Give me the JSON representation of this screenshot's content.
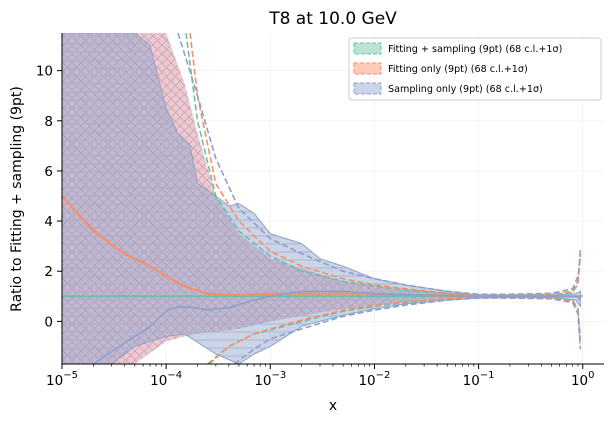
{
  "colors": {
    "fit_sampling": "#66c2a5",
    "fit_only": "#fc8d62",
    "sampling_only": "#8da0cb",
    "fit_only_band": "#e8a3a8",
    "sampling_only_band": "#8da0cb",
    "axis": "#000000",
    "grid": "#f0f0f0",
    "legend_border": "#cccccc"
  },
  "chart_data": {
    "type": "line",
    "title": "T8 at 10.0 GeV",
    "xlabel": "x",
    "ylabel": "Ratio to Fitting + sampling (9pt)",
    "xscale": "log",
    "xlim": [
      1e-05,
      1.6
    ],
    "ylim": [
      -1.7,
      11.5
    ],
    "grid": "on",
    "legend_position": "top-right",
    "x_ticks": [
      {
        "base": "10",
        "exp": "−5",
        "value": 1e-05
      },
      {
        "base": "10",
        "exp": "−4",
        "value": 0.0001
      },
      {
        "base": "10",
        "exp": "−3",
        "value": 0.001
      },
      {
        "base": "10",
        "exp": "−2",
        "value": 0.01
      },
      {
        "base": "10",
        "exp": "−1",
        "value": 0.1
      },
      {
        "base": "10",
        "exp": "0",
        "value": 1
      }
    ],
    "y_ticks": [
      {
        "label": "0",
        "value": 0
      },
      {
        "label": "2",
        "value": 2
      },
      {
        "label": "4",
        "value": 4
      },
      {
        "label": "6",
        "value": 6
      },
      {
        "label": "8",
        "value": 8
      },
      {
        "label": "10",
        "value": 10
      }
    ],
    "series": [
      {
        "name": "Fitting + sampling (9pt) (68 c.l.+1σ)",
        "key": "fit_sampling",
        "central": [
          [
            1e-05,
            1.0
          ],
          [
            1.0,
            1.0
          ]
        ],
        "upper_1sigma": [
          [
            0.000155,
            11.5
          ],
          [
            0.0002,
            8.0
          ],
          [
            0.0003,
            5.0
          ],
          [
            0.0005,
            3.6
          ],
          [
            0.001,
            2.6
          ],
          [
            0.002,
            2.0
          ],
          [
            0.005,
            1.6
          ],
          [
            0.01,
            1.4
          ],
          [
            0.02,
            1.25
          ],
          [
            0.05,
            1.1
          ],
          [
            0.1,
            1.05
          ],
          [
            0.2,
            1.05
          ],
          [
            0.5,
            1.07
          ],
          [
            0.8,
            1.15
          ],
          [
            0.9,
            1.5
          ],
          [
            0.95,
            2.9
          ]
        ],
        "lower_1sigma": [
          [
            0.00025,
            -1.7
          ],
          [
            0.0004,
            -1.0
          ],
          [
            0.0007,
            -0.5
          ],
          [
            0.001,
            -0.35
          ],
          [
            0.002,
            0.0
          ],
          [
            0.005,
            0.4
          ],
          [
            0.01,
            0.6
          ],
          [
            0.02,
            0.75
          ],
          [
            0.05,
            0.9
          ],
          [
            0.1,
            0.95
          ],
          [
            0.2,
            0.95
          ],
          [
            0.5,
            0.93
          ],
          [
            0.8,
            0.85
          ],
          [
            0.9,
            0.5
          ],
          [
            0.95,
            -0.9
          ]
        ]
      },
      {
        "name": "Fitting only (9pt) (68 c.l.+1σ)",
        "key": "fit_only",
        "central": [
          [
            1e-05,
            5.0
          ],
          [
            2e-05,
            3.6
          ],
          [
            4e-05,
            2.7
          ],
          [
            7e-05,
            2.2
          ],
          [
            0.0001,
            1.8
          ],
          [
            0.00015,
            1.4
          ],
          [
            0.00025,
            1.1
          ],
          [
            0.0005,
            1.05
          ],
          [
            0.001,
            1.1
          ],
          [
            0.003,
            1.1
          ],
          [
            0.01,
            1.1
          ],
          [
            0.03,
            1.05
          ],
          [
            0.1,
            1.0
          ],
          [
            0.5,
            1.0
          ],
          [
            0.9,
            1.0
          ],
          [
            0.95,
            1.0
          ]
        ],
        "upper_1sigma": [
          [
            0.00017,
            11.5
          ],
          [
            0.0002,
            9.0
          ],
          [
            0.0003,
            5.5
          ],
          [
            0.0005,
            4.0
          ],
          [
            0.001,
            2.8
          ],
          [
            0.002,
            2.2
          ],
          [
            0.005,
            1.7
          ],
          [
            0.01,
            1.45
          ],
          [
            0.02,
            1.3
          ],
          [
            0.05,
            1.12
          ],
          [
            0.1,
            1.06
          ],
          [
            0.2,
            1.05
          ],
          [
            0.5,
            1.08
          ],
          [
            0.8,
            1.2
          ],
          [
            0.9,
            1.6
          ],
          [
            0.95,
            2.7
          ]
        ],
        "lower_1sigma": [
          [
            0.00026,
            -1.7
          ],
          [
            0.0004,
            -1.0
          ],
          [
            0.0007,
            -0.5
          ],
          [
            0.001,
            -0.3
          ],
          [
            0.002,
            0.05
          ],
          [
            0.005,
            0.45
          ],
          [
            0.01,
            0.65
          ],
          [
            0.02,
            0.78
          ],
          [
            0.05,
            0.9
          ],
          [
            0.1,
            0.95
          ],
          [
            0.2,
            0.95
          ],
          [
            0.5,
            0.92
          ],
          [
            0.8,
            0.82
          ],
          [
            0.9,
            0.45
          ],
          [
            0.95,
            -0.7
          ]
        ],
        "band_upper": [
          [
            1e-05,
            11.5
          ],
          [
            0.0001,
            11.5
          ],
          [
            0.00015,
            9.5
          ],
          [
            0.0002,
            7.5
          ],
          [
            0.0003,
            5.0
          ],
          [
            0.0005,
            3.5
          ],
          [
            0.001,
            2.5
          ],
          [
            0.005,
            1.6
          ],
          [
            0.01,
            1.4
          ],
          [
            0.05,
            1.15
          ],
          [
            0.1,
            1.05
          ]
        ],
        "band_lower": [
          [
            1e-05,
            -1.7
          ],
          [
            5e-05,
            -1.7
          ],
          [
            0.0001,
            -0.8
          ],
          [
            0.00015,
            -0.6
          ],
          [
            0.0002,
            -0.5
          ],
          [
            0.0005,
            -0.3
          ],
          [
            0.001,
            0.0
          ],
          [
            0.005,
            0.5
          ],
          [
            0.01,
            0.65
          ],
          [
            0.05,
            0.9
          ],
          [
            0.1,
            0.95
          ]
        ]
      },
      {
        "name": "Sampling only (9pt) (68 c.l.+1σ)",
        "key": "sampling_only",
        "central": [
          [
            2e-05,
            -1.7
          ],
          [
            3e-05,
            -1.2
          ],
          [
            5e-05,
            -0.6
          ],
          [
            7e-05,
            -0.2
          ],
          [
            0.0001,
            0.4
          ],
          [
            0.00013,
            0.6
          ],
          [
            0.00018,
            0.55
          ],
          [
            0.00025,
            0.45
          ],
          [
            0.0004,
            0.55
          ],
          [
            0.0007,
            0.85
          ],
          [
            0.001,
            1.0
          ],
          [
            0.002,
            1.2
          ],
          [
            0.005,
            1.2
          ],
          [
            0.01,
            1.1
          ],
          [
            0.03,
            1.05
          ],
          [
            0.1,
            1.0
          ],
          [
            0.5,
            1.0
          ],
          [
            0.9,
            0.98
          ],
          [
            0.95,
            0.85
          ]
        ],
        "upper_1sigma": [
          [
            0.00013,
            11.5
          ],
          [
            0.0002,
            9.0
          ],
          [
            0.0003,
            6.5
          ],
          [
            0.0005,
            4.5
          ],
          [
            0.001,
            3.3
          ],
          [
            0.002,
            2.7
          ],
          [
            0.005,
            2.0
          ],
          [
            0.01,
            1.7
          ],
          [
            0.02,
            1.45
          ],
          [
            0.05,
            1.2
          ],
          [
            0.1,
            1.08
          ],
          [
            0.2,
            1.08
          ],
          [
            0.5,
            1.12
          ],
          [
            0.8,
            1.3
          ],
          [
            0.9,
            1.8
          ],
          [
            0.95,
            2.6
          ]
        ],
        "lower_1sigma": [
          [
            0.00045,
            -1.7
          ],
          [
            0.0007,
            -1.1
          ],
          [
            0.001,
            -0.7
          ],
          [
            0.002,
            -0.3
          ],
          [
            0.005,
            0.2
          ],
          [
            0.01,
            0.45
          ],
          [
            0.02,
            0.65
          ],
          [
            0.05,
            0.85
          ],
          [
            0.1,
            0.93
          ],
          [
            0.2,
            0.93
          ],
          [
            0.5,
            0.9
          ],
          [
            0.8,
            0.75
          ],
          [
            0.9,
            0.3
          ],
          [
            0.95,
            -1.1
          ]
        ],
        "band_upper": [
          [
            1e-05,
            11.5
          ],
          [
            5e-05,
            11.5
          ],
          [
            7e-05,
            11.0
          ],
          [
            0.0001,
            8.5
          ],
          [
            0.00013,
            7.5
          ],
          [
            0.00017,
            7.0
          ],
          [
            0.0002,
            5.5
          ],
          [
            0.0003,
            5.0
          ],
          [
            0.0004,
            4.6
          ],
          [
            0.0005,
            4.7
          ],
          [
            0.0007,
            4.3
          ],
          [
            0.001,
            3.5
          ],
          [
            0.002,
            3.1
          ],
          [
            0.003,
            2.5
          ],
          [
            0.005,
            2.2
          ],
          [
            0.01,
            1.7
          ],
          [
            0.02,
            1.45
          ],
          [
            0.05,
            1.2
          ],
          [
            0.1,
            1.05
          ],
          [
            0.3,
            1.03
          ],
          [
            0.6,
            1.05
          ],
          [
            0.85,
            1.1
          ],
          [
            0.95,
            1.2
          ]
        ],
        "band_lower": [
          [
            1e-05,
            -1.7
          ],
          [
            3e-05,
            -1.7
          ],
          [
            5e-05,
            -1.0
          ],
          [
            0.0001,
            -0.6
          ],
          [
            0.00015,
            -0.5
          ],
          [
            0.0003,
            -1.3
          ],
          [
            0.0005,
            -1.7
          ],
          [
            0.0007,
            -1.3
          ],
          [
            0.001,
            -1.0
          ],
          [
            0.002,
            -0.2
          ],
          [
            0.003,
            0.0
          ],
          [
            0.005,
            0.25
          ],
          [
            0.01,
            0.5
          ],
          [
            0.02,
            0.7
          ],
          [
            0.05,
            0.85
          ],
          [
            0.1,
            0.93
          ],
          [
            0.3,
            0.95
          ],
          [
            0.6,
            0.93
          ],
          [
            0.85,
            0.85
          ],
          [
            0.95,
            0.6
          ]
        ]
      }
    ]
  }
}
